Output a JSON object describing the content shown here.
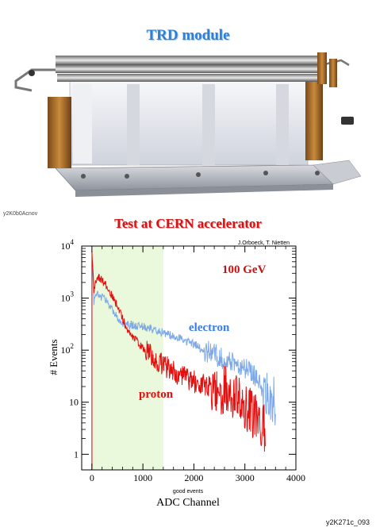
{
  "page": {
    "title": "TRD module",
    "plot_title": "Test at CERN accelerator",
    "corner_tag": "y2K0b0Acnov",
    "footer_code": "y2K271c_093"
  },
  "colors": {
    "title_blue": "#2f7fd6",
    "title_red": "#d11515",
    "electron": "#7ea9e8",
    "proton": "#e31010",
    "cut_region": "#eaf8dc"
  },
  "chart_data": {
    "type": "line",
    "title": "Test at CERN accelerator",
    "credit": "J.Orboeck, T. Nietten",
    "annotation": "100 GeV",
    "xlabel": "ADC Channel",
    "xsublabel": "good events",
    "ylabel": "# Events",
    "xlim": [
      -200,
      4000
    ],
    "ylim_log10": [
      -0.3,
      4
    ],
    "yscale": "log",
    "x_ticks": [
      "0",
      "1000",
      "2000",
      "3000",
      "4000"
    ],
    "y_ticks": [
      {
        "base": "1",
        "exp": ""
      },
      {
        "base": "10",
        "exp": ""
      },
      {
        "base": "10",
        "exp": "2"
      },
      {
        "base": "10",
        "exp": "3"
      },
      {
        "base": "10",
        "exp": "4"
      }
    ],
    "shaded_region_x": [
      0,
      1400
    ],
    "series": [
      {
        "name": "electron",
        "x": [
          0,
          20,
          40,
          60,
          90,
          120,
          150,
          200,
          300,
          400,
          500,
          600,
          700,
          800,
          1000,
          1200,
          1500,
          1800,
          2000,
          2200,
          2500,
          2800,
          3000,
          3200,
          3400,
          3600
        ],
        "y": [
          6000,
          3000,
          800,
          1000,
          1100,
          1200,
          1100,
          1050,
          850,
          600,
          420,
          340,
          310,
          300,
          280,
          250,
          200,
          160,
          130,
          100,
          75,
          60,
          45,
          30,
          18,
          10
        ]
      },
      {
        "name": "proton",
        "x": [
          0,
          20,
          40,
          60,
          90,
          120,
          150,
          200,
          250,
          300,
          400,
          500,
          600,
          700,
          800,
          1000,
          1200,
          1400,
          1600,
          1800,
          2000,
          2200,
          2500,
          2700,
          2800,
          3000,
          3200,
          3400
        ],
        "y": [
          8000,
          4000,
          1200,
          1800,
          2200,
          2500,
          2400,
          2200,
          1900,
          1600,
          1100,
          700,
          400,
          250,
          180,
          110,
          75,
          52,
          40,
          30,
          25,
          22,
          18,
          15,
          12,
          8,
          5,
          3
        ]
      }
    ]
  }
}
